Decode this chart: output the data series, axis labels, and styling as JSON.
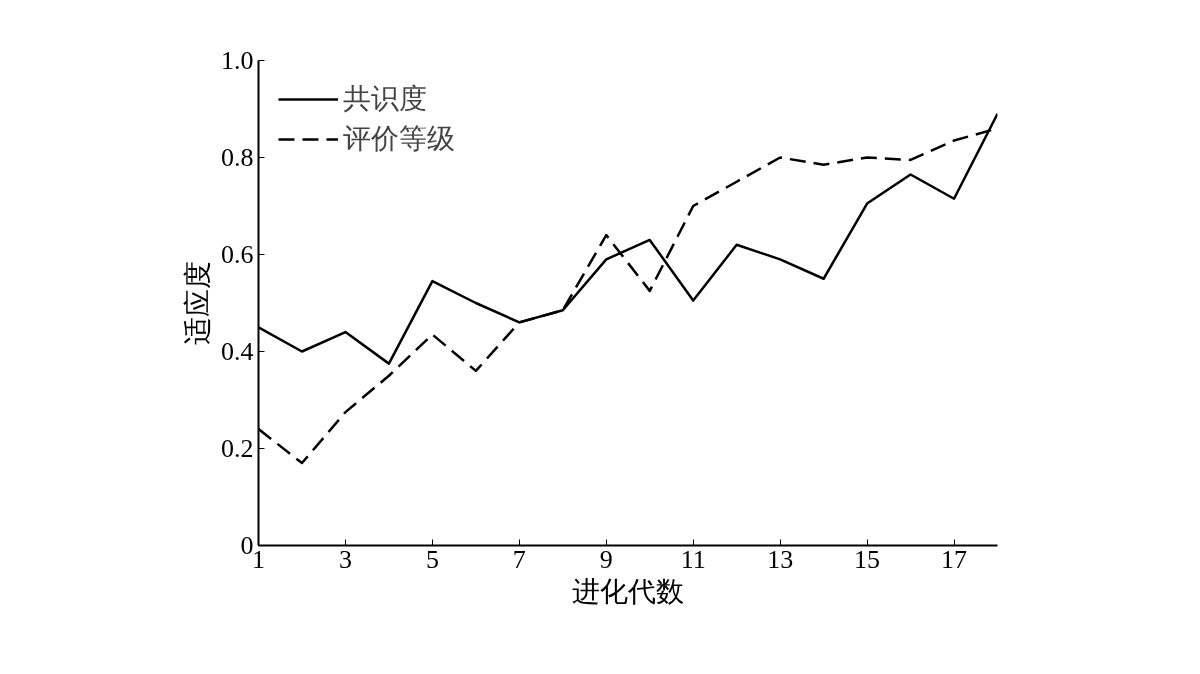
{
  "chart_data": {
    "type": "line",
    "xlabel": "进化代数",
    "ylabel": "适应度",
    "x": [
      1,
      2,
      3,
      4,
      5,
      6,
      7,
      8,
      9,
      10,
      11,
      12,
      13,
      14,
      15,
      16,
      17,
      18
    ],
    "series": [
      {
        "name": "共识度",
        "color": "#000000",
        "line_style": "solid",
        "values": [
          0.45,
          0.4,
          0.44,
          0.375,
          0.545,
          0.5,
          0.46,
          0.485,
          0.59,
          0.63,
          0.505,
          0.62,
          0.59,
          0.55,
          0.705,
          0.765,
          0.715,
          0.89
        ]
      },
      {
        "name": "评价等级",
        "color": "#000000",
        "line_style": "dashed",
        "values": [
          0.24,
          0.17,
          0.275,
          0.35,
          0.435,
          0.36,
          0.46,
          0.485,
          0.64,
          0.525,
          0.7,
          0.75,
          0.8,
          0.785,
          0.8,
          0.795,
          0.835,
          0.86
        ]
      }
    ],
    "xlim": [
      1,
      18
    ],
    "xticks": [
      1,
      3,
      5,
      7,
      9,
      11,
      13,
      15,
      17
    ],
    "ylim": [
      0,
      1.0
    ],
    "yticks": [
      {
        "value": 0,
        "label": "0"
      },
      0.2,
      0.4,
      0.6,
      0.8,
      {
        "value": 1.0,
        "label": "1.0"
      }
    ],
    "grid": false,
    "legend": "top left",
    "marker": "none"
  }
}
